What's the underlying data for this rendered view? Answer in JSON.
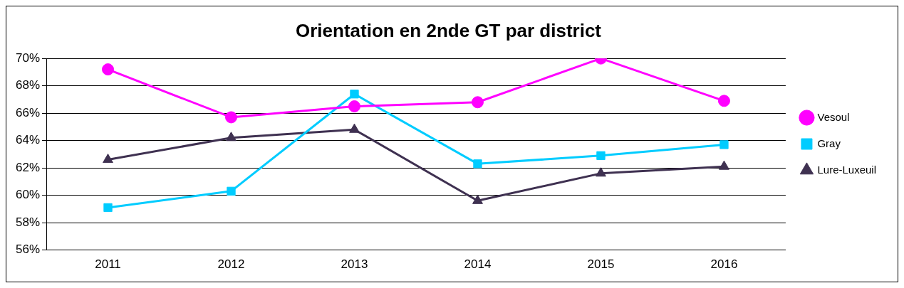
{
  "chart_data": {
    "type": "line",
    "title": "Orientation en 2nde GT par district",
    "categories": [
      "2011",
      "2012",
      "2013",
      "2014",
      "2015",
      "2016"
    ],
    "series": [
      {
        "name": "Vesoul",
        "color": "#ff00ff",
        "marker": "circle",
        "values": [
          69.2,
          65.7,
          66.5,
          66.8,
          70.0,
          66.9
        ]
      },
      {
        "name": "Gray",
        "color": "#00ccff",
        "marker": "square",
        "values": [
          59.1,
          60.3,
          67.4,
          62.3,
          62.9,
          63.7
        ]
      },
      {
        "name": "Lure-Luxeuil",
        "color": "#3f3151",
        "marker": "triangle",
        "values": [
          62.6,
          64.2,
          64.8,
          59.6,
          61.6,
          62.1
        ]
      }
    ],
    "ylim": [
      56,
      70
    ],
    "yticks": [
      {
        "value": 56,
        "label": "56%"
      },
      {
        "value": 58,
        "label": "58%"
      },
      {
        "value": 60,
        "label": "60%"
      },
      {
        "value": 62,
        "label": "62%"
      },
      {
        "value": 64,
        "label": "64%"
      },
      {
        "value": 66,
        "label": "66%"
      },
      {
        "value": 68,
        "label": "68%"
      },
      {
        "value": 70,
        "label": "70%"
      }
    ],
    "grid": "y",
    "legend": "right",
    "line_style": "solid"
  }
}
